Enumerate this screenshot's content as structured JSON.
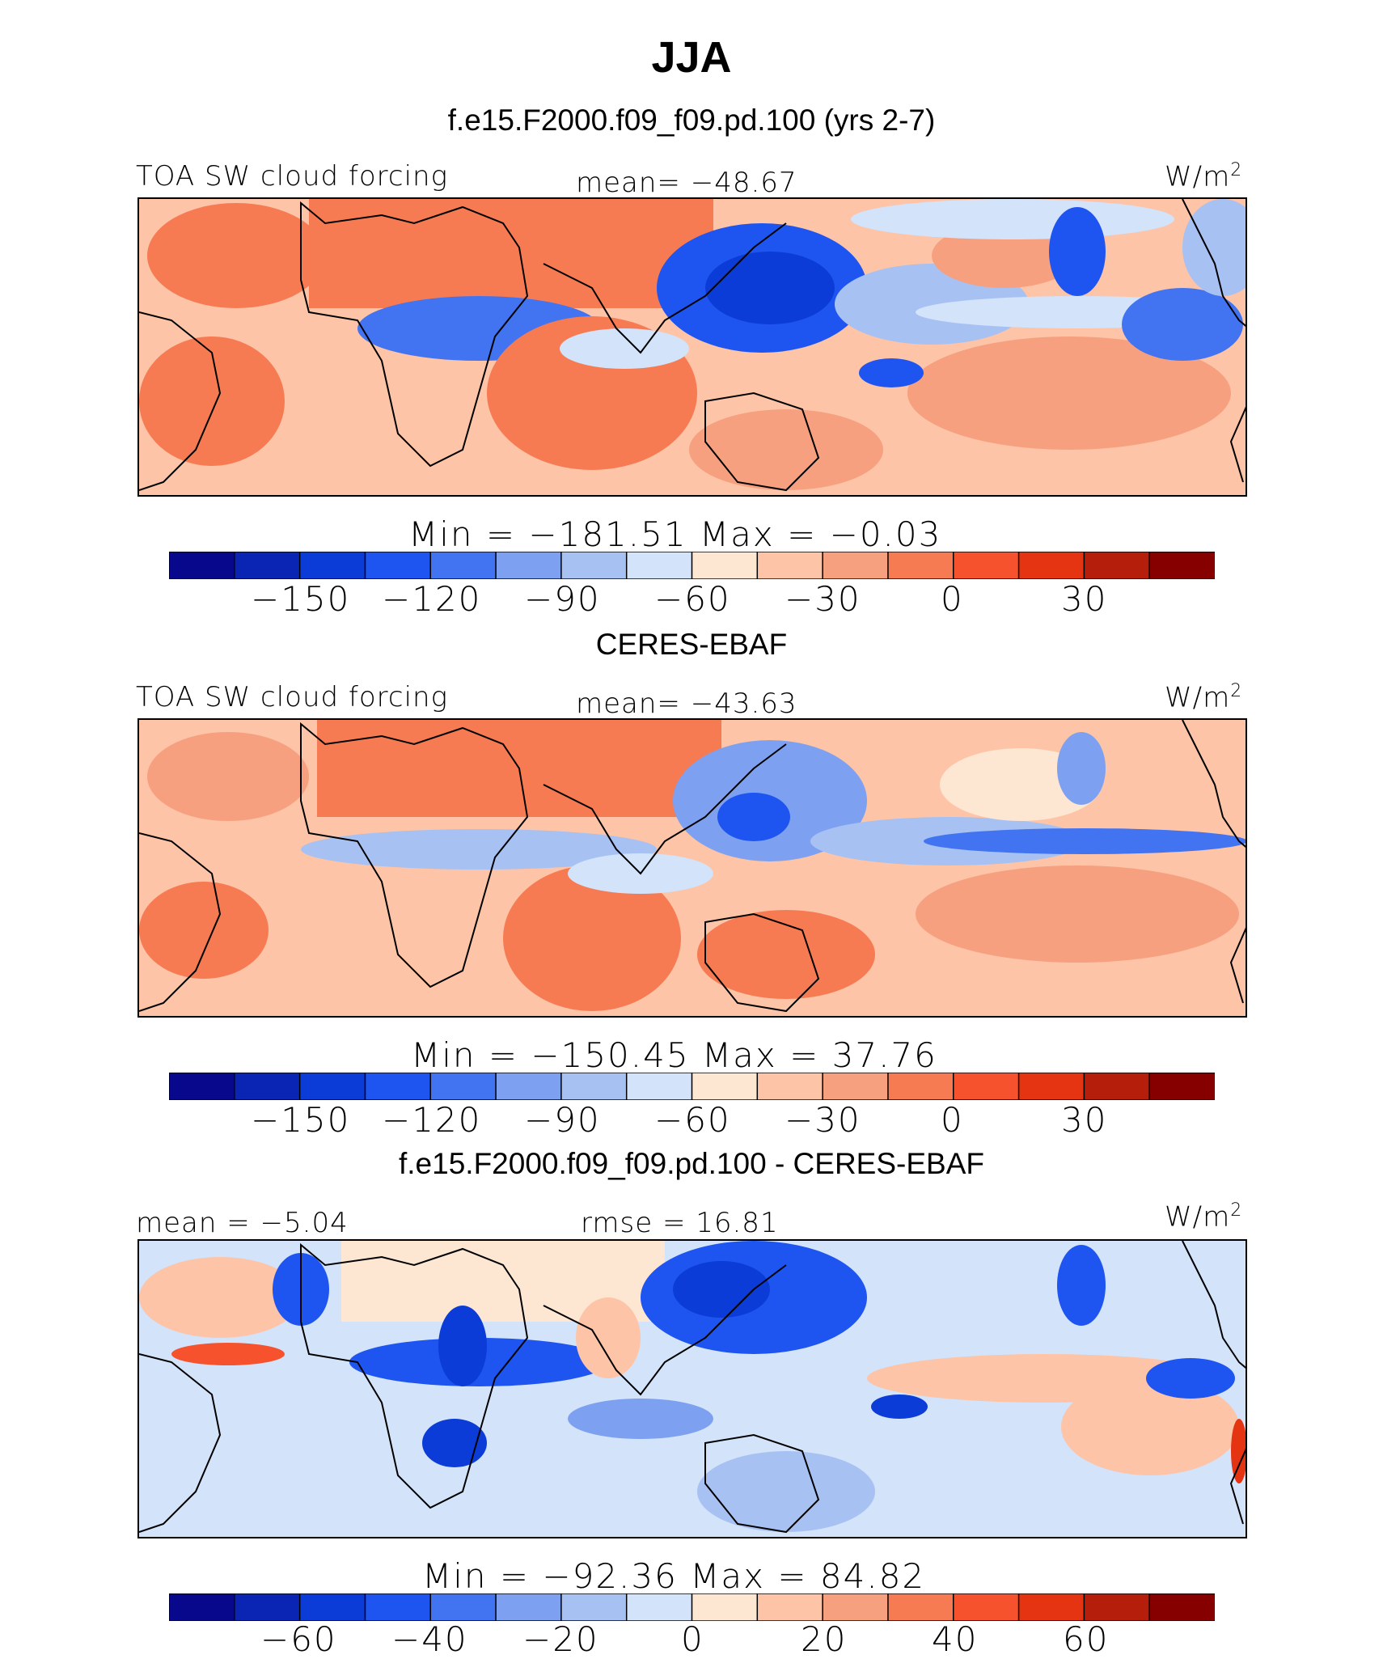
{
  "header": {
    "title": "JJA",
    "model_subtitle": "f.e15.F2000.f09_f09.pd.100 (yrs 2-7)",
    "obs_subtitle": "CERES-EBAF",
    "diff_subtitle": "f.e15.F2000.f09_f09.pd.100 - CERES-EBAF"
  },
  "colors": {
    "abs_scale": [
      "#08088c",
      "#0a24b4",
      "#0b3cd8",
      "#1e55f0",
      "#4273f0",
      "#7da1f0",
      "#a7c1f3",
      "#d2e3fa",
      "#fde6d2",
      "#fdc4a7",
      "#f7a07f",
      "#f77b52",
      "#f5522d",
      "#e53412",
      "#b51e0a",
      "#860000"
    ],
    "diff_scale": [
      "#08088c",
      "#0a24b4",
      "#0b3cd8",
      "#1e55f0",
      "#4273f0",
      "#7da1f0",
      "#a7c1f3",
      "#d2e3fa",
      "#fde6d2",
      "#fdc4a7",
      "#f7a07f",
      "#f77b52",
      "#f5522d",
      "#e53412",
      "#b51e0a",
      "#860000"
    ]
  },
  "chart_data": [
    {
      "type": "heatmap",
      "panel": "model",
      "left_label": "TOA SW cloud forcing",
      "center_label": "mean=  −48.67",
      "units": "W/m",
      "units_sup": "2",
      "minmax_text": "Min  =  −181.51  Max  =    −0.03",
      "colorbar_ticks": [
        "−150",
        "−120",
        "−90",
        "−60",
        "−30",
        "0",
        "30"
      ],
      "colorbar_levels": [
        -165,
        -150,
        -135,
        -120,
        -105,
        -90,
        -75,
        -60,
        -45,
        -30,
        -15,
        0,
        15,
        30,
        45
      ],
      "mean": -48.67,
      "min": -181.51,
      "max": -0.03
    },
    {
      "type": "heatmap",
      "panel": "observations",
      "left_label": "TOA SW cloud forcing",
      "center_label": "mean=  −43.63",
      "units": "W/m",
      "units_sup": "2",
      "minmax_text": "Min  =  −150.45  Max  =    37.76",
      "colorbar_ticks": [
        "−150",
        "−120",
        "−90",
        "−60",
        "−30",
        "0",
        "30"
      ],
      "colorbar_levels": [
        -165,
        -150,
        -135,
        -120,
        -105,
        -90,
        -75,
        -60,
        -45,
        -30,
        -15,
        0,
        15,
        30,
        45
      ],
      "mean": -43.63,
      "min": -150.45,
      "max": 37.76
    },
    {
      "type": "heatmap",
      "panel": "difference",
      "left_label": "mean  =   −5.04",
      "center_label": "rmse  =   16.81",
      "units": "W/m",
      "units_sup": "2",
      "minmax_text": "Min  =  −92.36  Max  =   84.82",
      "colorbar_ticks": [
        "−60",
        "−40",
        "−20",
        "0",
        "20",
        "40",
        "60"
      ],
      "colorbar_levels": [
        -70,
        -60,
        -50,
        -40,
        -30,
        -20,
        -10,
        0,
        10,
        20,
        30,
        40,
        50,
        60,
        70
      ],
      "mean": -5.04,
      "rmse": 16.81,
      "min": -92.36,
      "max": 84.82
    }
  ]
}
